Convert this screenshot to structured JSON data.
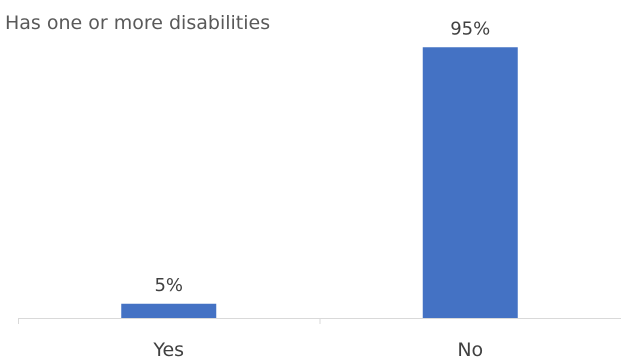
{
  "chart_data": {
    "type": "bar",
    "title": "Has one or more disabilities",
    "categories": [
      "Yes",
      "No"
    ],
    "values": [
      5,
      95
    ],
    "value_labels": [
      "5%",
      "95%"
    ],
    "ylim": [
      0,
      100
    ],
    "grid": false,
    "legend": "none",
    "bar_color": "#4472C4",
    "axis_color": "#D9D9D9"
  }
}
